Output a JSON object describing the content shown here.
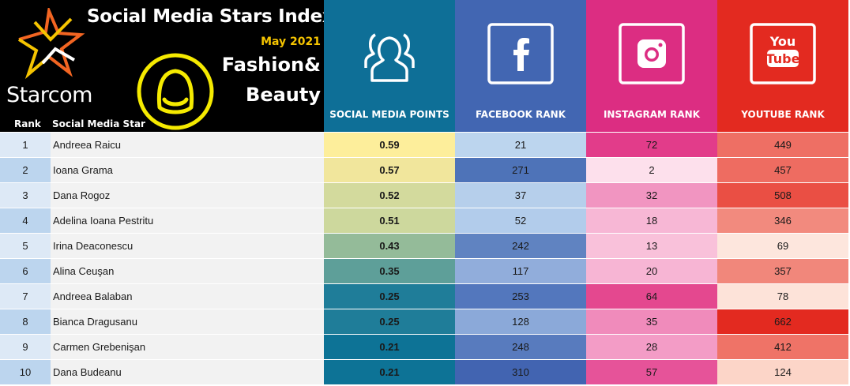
{
  "header": {
    "title": "Social Media Stars Index",
    "date": "May 2021",
    "category_line1": "Fashion&",
    "category_line2": "Beauty",
    "brand": "Starcom",
    "col_rank": "Rank",
    "col_star": "Social Media Star"
  },
  "columns": {
    "points": {
      "label": "SOCIAL MEDIA POINTS",
      "bg": "#0e6f97",
      "icon": "users-icon"
    },
    "facebook": {
      "label": "FACEBOOK RANK",
      "bg": "#4266b2",
      "icon": "facebook-icon"
    },
    "instagram": {
      "label": "INSTAGRAM RANK",
      "bg": "#dc2d82",
      "icon": "instagram-icon"
    },
    "youtube": {
      "label": "YOUTUBE RANK",
      "bg": "#e32a20",
      "icon": "youtube-icon",
      "icon_text_top": "You",
      "icon_text_bottom": "Tube"
    }
  },
  "colors": {
    "rank_cell_a": "#dde9f6",
    "rank_cell_b": "#bcd5ee",
    "name_cell": "#f2f2f2",
    "logo_yellow": "#f5c400",
    "logo_orange": "#f26522"
  },
  "chart_data": {
    "type": "table",
    "title": "Social Media Stars Index",
    "subtitle": "May 2021",
    "category": "Fashion& Beauty",
    "columns": [
      "Rank",
      "Social Media Star",
      "SOCIAL MEDIA POINTS",
      "FACEBOOK RANK",
      "INSTAGRAM RANK",
      "YOUTUBE RANK"
    ],
    "rows": [
      {
        "rank": "1",
        "name": "Andreea Raicu",
        "points": "0.59",
        "facebook": "21",
        "instagram": "72",
        "youtube": "449",
        "colors": [
          "#fdee9b",
          "#bcd5ee",
          "#e23c8a",
          "#ee6f64"
        ]
      },
      {
        "rank": "2",
        "name": "Ioana Grama",
        "points": "0.57",
        "facebook": "271",
        "instagram": "2",
        "youtube": "457",
        "colors": [
          "#f1e69c",
          "#4e73b8",
          "#fde0ec",
          "#ee6c61"
        ]
      },
      {
        "rank": "3",
        "name": "Dana Rogoz",
        "points": "0.52",
        "facebook": "37",
        "instagram": "32",
        "youtube": "508",
        "colors": [
          "#d3da9d",
          "#b6cfeb",
          "#f195c1",
          "#ea4f44"
        ]
      },
      {
        "rank": "4",
        "name": "Adelina Ioana Pestritu",
        "points": "0.51",
        "facebook": "52",
        "instagram": "18",
        "youtube": "346",
        "colors": [
          "#cdd89d",
          "#b2cceb",
          "#f7b7d5",
          "#f28a7e"
        ]
      },
      {
        "rank": "5",
        "name": "Irina Deaconescu",
        "points": "0.43",
        "facebook": "242",
        "instagram": "13",
        "youtube": "69",
        "colors": [
          "#94bb99",
          "#6083c1",
          "#f9c1da",
          "#fde6dd"
        ]
      },
      {
        "rank": "6",
        "name": "Alina Ceuşan",
        "points": "0.35",
        "facebook": "117",
        "instagram": "20",
        "youtube": "357",
        "colors": [
          "#5e9f99",
          "#91addb",
          "#f7b5d4",
          "#f1877b"
        ]
      },
      {
        "rank": "7",
        "name": "Andreea Balaban",
        "points": "0.25",
        "facebook": "253",
        "instagram": "64",
        "youtube": "78",
        "colors": [
          "#1f7d99",
          "#5377bd",
          "#e4488f",
          "#fde3d9"
        ]
      },
      {
        "rank": "8",
        "name": "Bianca Dragusanu",
        "points": "0.25",
        "facebook": "128",
        "instagram": "35",
        "youtube": "662",
        "colors": [
          "#1f7d99",
          "#8ba9d9",
          "#f08bbb",
          "#e32a20"
        ]
      },
      {
        "rank": "9",
        "name": "Carmen Grebenişan",
        "points": "0.21",
        "facebook": "248",
        "instagram": "28",
        "youtube": "412",
        "colors": [
          "#0d7396",
          "#587bbe",
          "#f39cc6",
          "#ef7367"
        ]
      },
      {
        "rank": "10",
        "name": "Dana Budeanu",
        "points": "0.21",
        "facebook": "310",
        "instagram": "57",
        "youtube": "124",
        "colors": [
          "#0d7396",
          "#4264b1",
          "#e65399",
          "#fcd5c8"
        ]
      }
    ]
  }
}
